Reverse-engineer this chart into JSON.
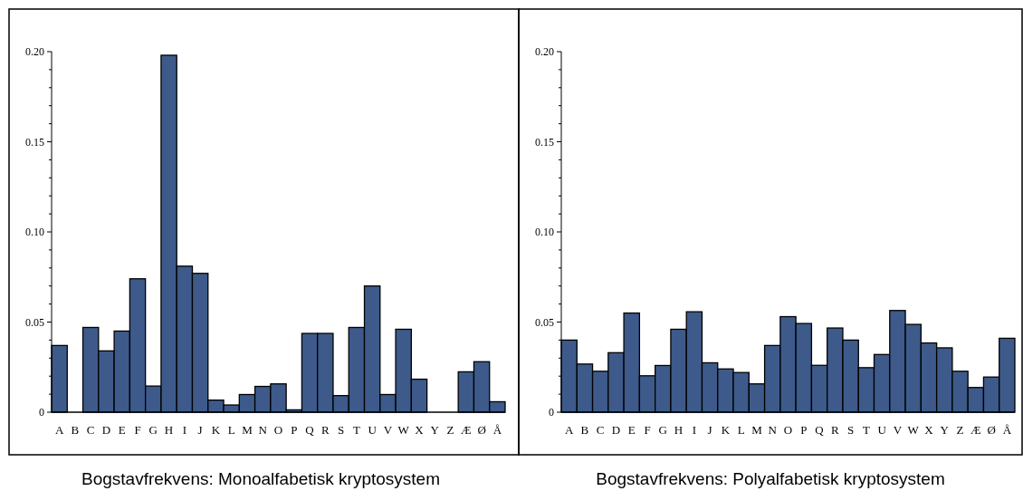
{
  "chart_data": [
    {
      "type": "bar",
      "title": "Bogstavfrekvens: Monoalfabetisk kryptosystem",
      "categories": [
        "A",
        "B",
        "C",
        "D",
        "E",
        "F",
        "G",
        "H",
        "I",
        "J",
        "K",
        "L",
        "M",
        "N",
        "O",
        "P",
        "Q",
        "R",
        "S",
        "T",
        "U",
        "V",
        "W",
        "X",
        "Y",
        "Z",
        "Æ",
        "Ø",
        "Å"
      ],
      "values": [
        0.037,
        0,
        0.047,
        0.034,
        0.045,
        0.074,
        0.0145,
        0.198,
        0.081,
        0.077,
        0.0067,
        0.004,
        0.0098,
        0.0143,
        0.0157,
        0.0013,
        0.0437,
        0.0437,
        0.0092,
        0.047,
        0.07,
        0.0098,
        0.046,
        0.0183,
        0,
        0,
        0.0224,
        0.028,
        0.0058
      ],
      "color": "#3d5a8a",
      "ylim": [
        0,
        0.2
      ],
      "yticks": [
        0,
        {
          "value": 0.01,
          "label": null
        },
        {
          "value": 0.02,
          "label": null
        },
        {
          "value": 0.03,
          "label": null
        },
        {
          "value": 0.04,
          "label": null
        },
        {
          "value": 0.05,
          "label": "0.05"
        },
        {
          "value": 0.06,
          "label": null
        },
        {
          "value": 0.07,
          "label": null
        },
        {
          "value": 0.08,
          "label": null
        },
        {
          "value": 0.09,
          "label": null
        },
        {
          "value": 0.1,
          "label": "0.10"
        },
        {
          "value": 0.11,
          "label": null
        },
        {
          "value": 0.12,
          "label": null
        },
        {
          "value": 0.13,
          "label": null
        },
        {
          "value": 0.14,
          "label": null
        },
        {
          "value": 0.15,
          "label": "0.15"
        },
        {
          "value": 0.16,
          "label": null
        },
        {
          "value": 0.17,
          "label": null
        },
        {
          "value": 0.18,
          "label": null
        },
        {
          "value": 0.19,
          "label": null
        },
        {
          "value": 0.2,
          "label": "0.20"
        }
      ]
    },
    {
      "type": "bar",
      "title": "Bogstavfrekvens: Polyalfabetisk kryptosystem",
      "categories": [
        "A",
        "B",
        "C",
        "D",
        "E",
        "F",
        "G",
        "H",
        "I",
        "J",
        "K",
        "L",
        "M",
        "N",
        "O",
        "P",
        "Q",
        "R",
        "S",
        "T",
        "U",
        "V",
        "W",
        "X",
        "Y",
        "Z",
        "Æ",
        "Ø",
        "Å"
      ],
      "values": [
        0.04,
        0.0267,
        0.0227,
        0.033,
        0.055,
        0.0202,
        0.0259,
        0.046,
        0.0557,
        0.0274,
        0.024,
        0.022,
        0.0157,
        0.037,
        0.053,
        0.0492,
        0.026,
        0.0467,
        0.04,
        0.0247,
        0.032,
        0.0564,
        0.0487,
        0.0384,
        0.0357,
        0.0227,
        0.0137,
        0.0195,
        0.041
      ],
      "color": "#3d5a8a",
      "ylim": [
        0,
        0.2
      ],
      "yticks": [
        0,
        {
          "value": 0.01,
          "label": null
        },
        {
          "value": 0.02,
          "label": null
        },
        {
          "value": 0.03,
          "label": null
        },
        {
          "value": 0.04,
          "label": null
        },
        {
          "value": 0.05,
          "label": "0.05"
        },
        {
          "value": 0.06,
          "label": null
        },
        {
          "value": 0.07,
          "label": null
        },
        {
          "value": 0.08,
          "label": null
        },
        {
          "value": 0.09,
          "label": null
        },
        {
          "value": 0.1,
          "label": "0.10"
        },
        {
          "value": 0.11,
          "label": null
        },
        {
          "value": 0.12,
          "label": null
        },
        {
          "value": 0.13,
          "label": null
        },
        {
          "value": 0.14,
          "label": null
        },
        {
          "value": 0.15,
          "label": "0.15"
        },
        {
          "value": 0.16,
          "label": null
        },
        {
          "value": 0.17,
          "label": null
        },
        {
          "value": 0.18,
          "label": null
        },
        {
          "value": 0.19,
          "label": null
        },
        {
          "value": 0.2,
          "label": "0.20"
        }
      ]
    }
  ]
}
